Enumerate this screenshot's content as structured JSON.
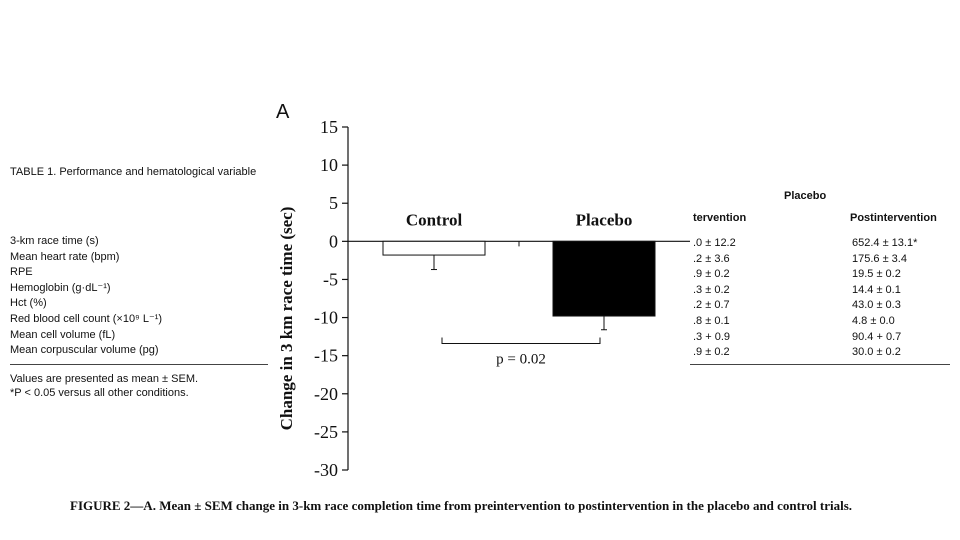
{
  "left_table": {
    "title": "TABLE 1. Performance and hematological variable",
    "rows": [
      "3-km race time (s)",
      "Mean heart rate (bpm)",
      "RPE",
      "Hemoglobin (g·dL⁻¹)",
      "Hct (%)",
      "Red blood cell count (×10⁹ L⁻¹)",
      "Mean cell volume (fL)",
      "Mean corpuscular volume (pg)"
    ],
    "notes": [
      "Values are presented as mean ± SEM.",
      "*P < 0.05 versus all other conditions."
    ]
  },
  "right_table": {
    "group_header": "Placebo",
    "col1_header": "tervention",
    "col2_header": "Postintervention",
    "rows": [
      {
        "pre": ".0 ± 12.2",
        "post": "652.4 ± 13.1*"
      },
      {
        "pre": ".2 ± 3.6",
        "post": "175.6 ± 3.4"
      },
      {
        "pre": ".9 ± 0.2",
        "post": "19.5 ± 0.2"
      },
      {
        "pre": ".3 ± 0.2",
        "post": "14.4 ± 0.1"
      },
      {
        "pre": ".2 ± 0.7",
        "post": "43.0 ± 0.3"
      },
      {
        "pre": ".8 ± 0.1",
        "post": "4.8 ± 0.0"
      },
      {
        "pre": ".3 + 0.9",
        "post": "90.4 + 0.7"
      },
      {
        "pre": ".9 ± 0.2",
        "post": "30.0 ± 0.2"
      }
    ]
  },
  "chart_data": {
    "type": "bar",
    "panel_label": "A",
    "categories": [
      "Control",
      "Placebo"
    ],
    "values": [
      -1.8,
      -9.8
    ],
    "errors": [
      1.9,
      1.8
    ],
    "bar_colors": [
      "#ffffff",
      "#000000"
    ],
    "ylabel": "Change in 3 km race time (sec)",
    "ylim": [
      -30,
      15
    ],
    "yticks": [
      15,
      10,
      5,
      0,
      -5,
      -10,
      -15,
      -20,
      -25,
      -30
    ],
    "ytick_labels": [
      "15",
      "10",
      "5",
      "0",
      "-5",
      "-10",
      "-15",
      "-20",
      "-25",
      "-30"
    ],
    "annotation": "p = 0.02"
  },
  "caption": "FIGURE 2—A. Mean ± SEM change in 3-km race completion time from preintervention to postintervention in the placebo and control trials."
}
